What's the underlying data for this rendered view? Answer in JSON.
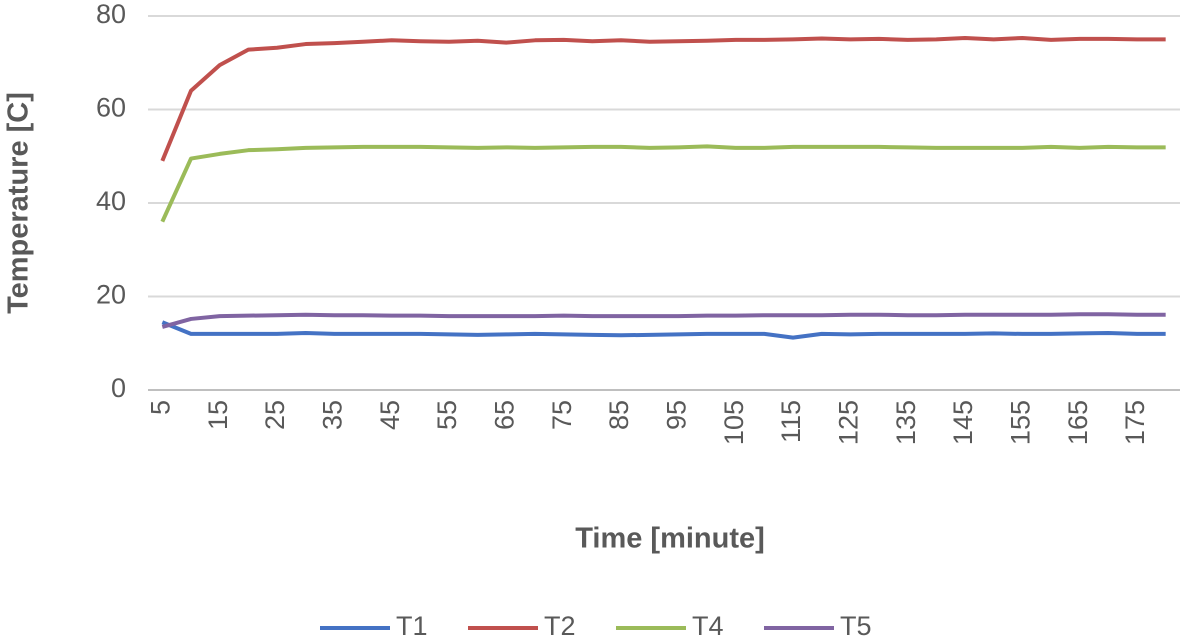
{
  "chart_data": {
    "type": "line",
    "xlabel": "Time [minute]",
    "ylabel": "Temperature [C]",
    "categories": [
      "5",
      null,
      "15",
      null,
      "25",
      null,
      "35",
      null,
      "45",
      null,
      "55",
      null,
      "65",
      null,
      "75",
      null,
      "85",
      null,
      "95",
      null,
      "105",
      null,
      "115",
      null,
      "125",
      null,
      "135",
      null,
      "145",
      null,
      "155",
      null,
      "165",
      null,
      "175",
      null
    ],
    "series": [
      {
        "name": "T1",
        "color": "#4472c4",
        "values": [
          14.5,
          12,
          12,
          12,
          12,
          12.2,
          12,
          12,
          12,
          12,
          11.9,
          11.8,
          11.9,
          12,
          11.9,
          11.8,
          11.7,
          11.8,
          11.9,
          12,
          12,
          12,
          11.2,
          12,
          11.9,
          12,
          12,
          12,
          12,
          12.1,
          12,
          12,
          12.1,
          12.2,
          12,
          12
        ]
      },
      {
        "name": "T2",
        "color": "#c0504d",
        "values": [
          49,
          64,
          69.5,
          72.8,
          73.2,
          74,
          74.2,
          74.5,
          74.8,
          74.6,
          74.5,
          74.7,
          74.3,
          74.8,
          74.9,
          74.6,
          74.8,
          74.5,
          74.6,
          74.7,
          74.9,
          74.9,
          75,
          75.2,
          75,
          75.1,
          74.9,
          75,
          75.3,
          75,
          75.3,
          74.9,
          75.1,
          75.1,
          75,
          75
        ]
      },
      {
        "name": "T4",
        "color": "#9bbb59",
        "values": [
          36,
          49.5,
          50.5,
          51.3,
          51.5,
          51.8,
          51.9,
          52,
          52,
          52,
          51.9,
          51.8,
          51.9,
          51.8,
          51.9,
          52,
          52,
          51.8,
          51.9,
          52.1,
          51.8,
          51.8,
          52,
          52,
          52,
          52,
          51.9,
          51.8,
          51.8,
          51.8,
          51.8,
          52,
          51.8,
          52,
          51.9,
          51.9
        ]
      },
      {
        "name": "T5",
        "color": "#8064a2",
        "values": [
          13.5,
          15.2,
          15.8,
          15.9,
          16,
          16.1,
          16,
          16,
          15.9,
          15.9,
          15.8,
          15.8,
          15.8,
          15.8,
          15.9,
          15.8,
          15.8,
          15.8,
          15.8,
          15.9,
          15.9,
          16,
          16,
          16,
          16.1,
          16.1,
          16,
          16,
          16.1,
          16.1,
          16.1,
          16.1,
          16.2,
          16.2,
          16.1,
          16.1
        ]
      }
    ],
    "ylim": [
      0,
      80
    ],
    "yticks": [
      0,
      20,
      40,
      60,
      80
    ],
    "grid": true,
    "legend": "bottom"
  }
}
